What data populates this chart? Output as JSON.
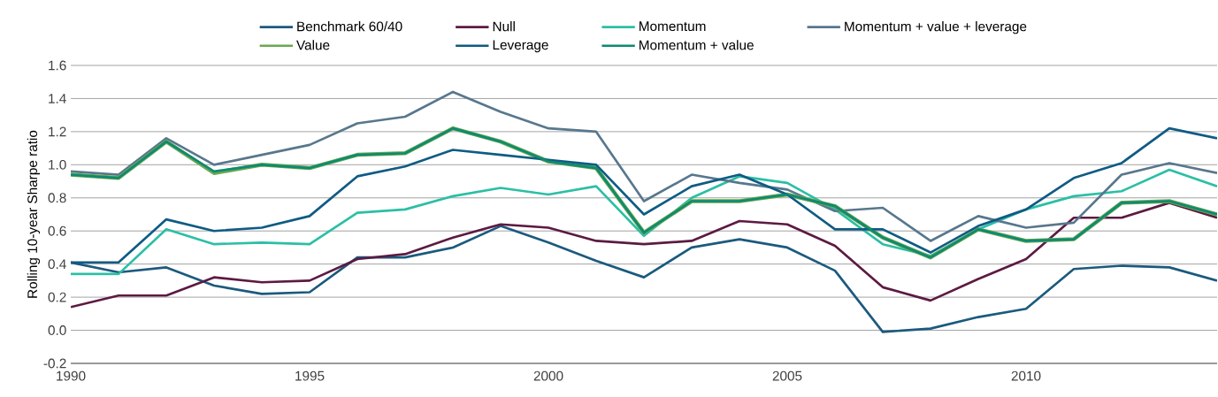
{
  "chart_data": {
    "type": "line",
    "ylabel": "Rolling 10-year Sharpe ratio",
    "x": [
      1990,
      1991,
      1992,
      1993,
      1994,
      1995,
      1996,
      1997,
      1998,
      1999,
      2000,
      2001,
      2002,
      2003,
      2004,
      2005,
      2006,
      2007,
      2008,
      2009,
      2010,
      2011,
      2012,
      2013,
      2014
    ],
    "xlim": [
      1990,
      2014
    ],
    "xticks": [
      1990,
      1995,
      2000,
      2005,
      2010
    ],
    "ylim": [
      -0.2,
      1.6
    ],
    "yticks": [
      {
        "value": -0.2,
        "label": "-0.2"
      },
      {
        "value": 0,
        "label": "0.0"
      },
      {
        "value": 0.2,
        "label": "0.2"
      },
      {
        "value": 0.4,
        "label": "0.4"
      },
      {
        "value": 0.6,
        "label": "0.6"
      },
      {
        "value": 0.8,
        "label": "0.8"
      },
      {
        "value": 1.0,
        "label": "1.0"
      },
      {
        "value": 1.2,
        "label": "1.2"
      },
      {
        "value": 1.4,
        "label": "1.4"
      },
      {
        "value": 1.6,
        "label": "1.6"
      }
    ],
    "grid": "y",
    "legend": "top",
    "marker": "none",
    "line_style": "solid",
    "series": [
      {
        "name": "Benchmark 60/40",
        "color": "#1b5a7e",
        "values": [
          0.41,
          0.35,
          0.38,
          0.27,
          0.22,
          0.23,
          0.44,
          0.44,
          0.5,
          0.63,
          0.53,
          0.42,
          0.32,
          0.5,
          0.55,
          0.5,
          0.36,
          -0.01,
          0.01,
          0.08,
          0.13,
          0.37,
          0.39,
          0.38,
          0.3
        ]
      },
      {
        "name": "Null",
        "color": "#5c1a42",
        "values": [
          0.14,
          0.21,
          0.21,
          0.32,
          0.29,
          0.3,
          0.43,
          0.46,
          0.56,
          0.64,
          0.62,
          0.54,
          0.52,
          0.54,
          0.66,
          0.64,
          0.51,
          0.26,
          0.18,
          0.31,
          0.43,
          0.68,
          0.68,
          0.77,
          0.68
        ]
      },
      {
        "name": "Momentum",
        "color": "#2bbfa5",
        "values": [
          0.34,
          0.34,
          0.61,
          0.52,
          0.53,
          0.52,
          0.71,
          0.73,
          0.81,
          0.86,
          0.82,
          0.87,
          0.57,
          0.8,
          0.93,
          0.89,
          0.73,
          0.52,
          0.45,
          0.61,
          0.73,
          0.81,
          0.84,
          0.97,
          0.87
        ]
      },
      {
        "name": "Momentum + value + leverage",
        "color": "#58778d",
        "values": [
          0.96,
          0.94,
          1.16,
          1.0,
          1.06,
          1.12,
          1.25,
          1.29,
          1.44,
          1.32,
          1.22,
          1.2,
          0.78,
          0.94,
          0.89,
          0.85,
          0.72,
          0.74,
          0.54,
          0.69,
          0.62,
          0.65,
          0.94,
          1.01,
          0.95
        ]
      },
      {
        "name": "Value",
        "color": "#6aa84f",
        "values": [
          0.94,
          0.92,
          1.14,
          0.95,
          1.0,
          0.98,
          1.06,
          1.07,
          1.22,
          1.14,
          1.02,
          0.98,
          0.59,
          0.78,
          0.78,
          0.82,
          0.75,
          0.56,
          0.44,
          0.61,
          0.54,
          0.55,
          0.77,
          0.78,
          0.7
        ]
      },
      {
        "name": "Leverage",
        "color": "#0f5b84",
        "values": [
          0.41,
          0.41,
          0.67,
          0.6,
          0.62,
          0.69,
          0.93,
          0.99,
          1.09,
          1.06,
          1.03,
          1.0,
          0.7,
          0.87,
          0.94,
          0.82,
          0.61,
          0.61,
          0.47,
          0.63,
          0.73,
          0.92,
          1.01,
          1.22,
          1.16
        ]
      },
      {
        "name": "Momentum + value",
        "color": "#0d8a72",
        "values": [
          0.94,
          0.92,
          1.14,
          0.96,
          1.0,
          0.98,
          1.06,
          1.07,
          1.22,
          1.14,
          1.02,
          0.98,
          0.59,
          0.78,
          0.78,
          0.82,
          0.75,
          0.56,
          0.44,
          0.61,
          0.54,
          0.55,
          0.77,
          0.78,
          0.7
        ]
      }
    ]
  }
}
